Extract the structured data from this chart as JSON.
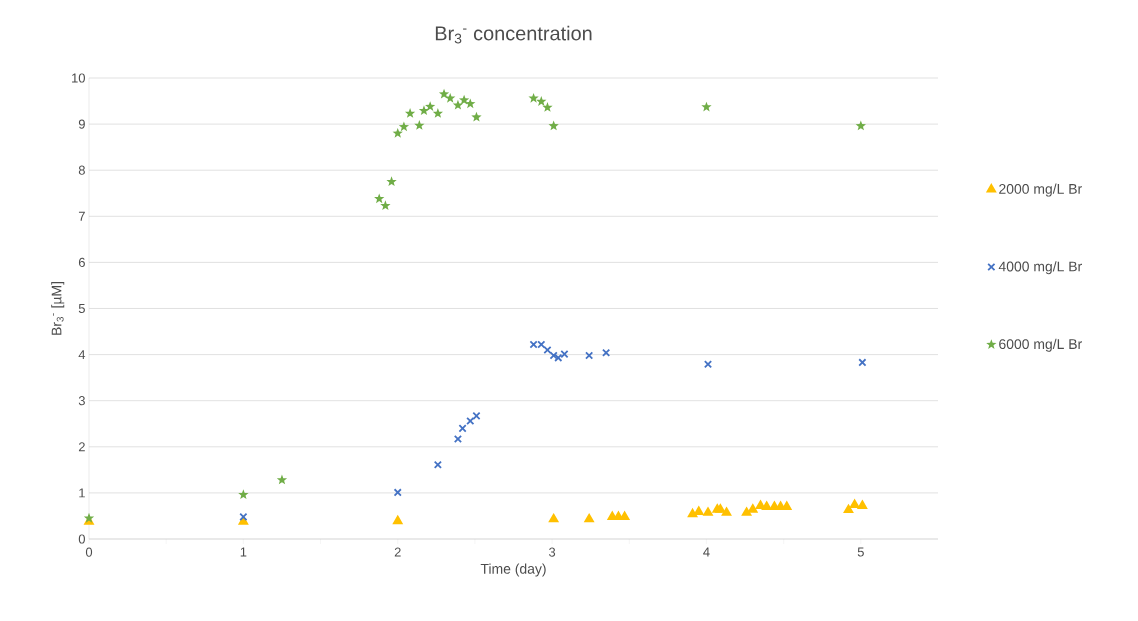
{
  "chart_data": {
    "type": "scatter",
    "title": "Br$_{3}$$^{-}$ concentration",
    "xlabel": "Time (day)",
    "ylabel": "Br$_{3}$$^{-}$ [µM]",
    "xlim": [
      0,
      5.5
    ],
    "ylim": [
      0,
      10
    ],
    "xticks": [
      0,
      {
        "value": 0.5,
        "label": null
      },
      1,
      {
        "value": 1.5,
        "label": null
      },
      2,
      {
        "value": 2.5,
        "label": null
      },
      3,
      {
        "value": 3.5,
        "label": null
      },
      4,
      {
        "value": 4.5,
        "label": null
      },
      5
    ],
    "yticks": [
      0,
      1,
      2,
      3,
      4,
      5,
      6,
      7,
      8,
      9,
      10
    ],
    "grid": "y",
    "legend": "right",
    "series": [
      {
        "name": "2000 mg/L Br",
        "color": "#ffc000",
        "marker": "triangle",
        "x": [
          0,
          1,
          2.0,
          3.01,
          3.24,
          3.39,
          3.43,
          3.47,
          3.91,
          3.95,
          4.01,
          4.07,
          4.09,
          4.13,
          4.26,
          4.3,
          4.35,
          4.39,
          4.44,
          4.48,
          4.52,
          4.92,
          4.96,
          5.01
        ],
        "values": [
          0.38,
          0.38,
          0.39,
          0.43,
          0.43,
          0.48,
          0.48,
          0.48,
          0.54,
          0.59,
          0.57,
          0.64,
          0.64,
          0.57,
          0.57,
          0.64,
          0.72,
          0.7,
          0.7,
          0.7,
          0.7,
          0.63,
          0.74,
          0.72
        ]
      },
      {
        "name": "4000 mg/L Br",
        "color": "#4472c4",
        "marker": "cross",
        "x": [
          1,
          2.0,
          2.26,
          2.39,
          2.42,
          2.47,
          2.51,
          2.88,
          2.93,
          2.97,
          3.01,
          3.04,
          3.08,
          3.24,
          3.35,
          4.01,
          5.01
        ],
        "values": [
          0.48,
          1.01,
          1.61,
          2.17,
          2.4,
          2.56,
          2.67,
          4.22,
          4.22,
          4.1,
          3.98,
          3.93,
          4.01,
          3.98,
          4.04,
          3.79,
          3.83
        ]
      },
      {
        "name": "6000 mg/L Br",
        "color": "#70ad47",
        "marker": "star",
        "x": [
          0,
          1,
          1.25,
          1.88,
          1.92,
          1.96,
          2.0,
          2.04,
          2.08,
          2.14,
          2.17,
          2.21,
          2.26,
          2.3,
          2.34,
          2.39,
          2.43,
          2.47,
          2.51,
          2.88,
          2.93,
          2.97,
          3.01,
          4.0,
          5.0
        ],
        "values": [
          0.45,
          0.96,
          1.28,
          7.38,
          7.23,
          7.75,
          8.8,
          8.94,
          9.23,
          8.97,
          9.29,
          9.38,
          9.23,
          9.65,
          9.56,
          9.41,
          9.52,
          9.44,
          9.15,
          9.56,
          9.49,
          9.36,
          8.96,
          9.37,
          8.96
        ]
      }
    ]
  }
}
